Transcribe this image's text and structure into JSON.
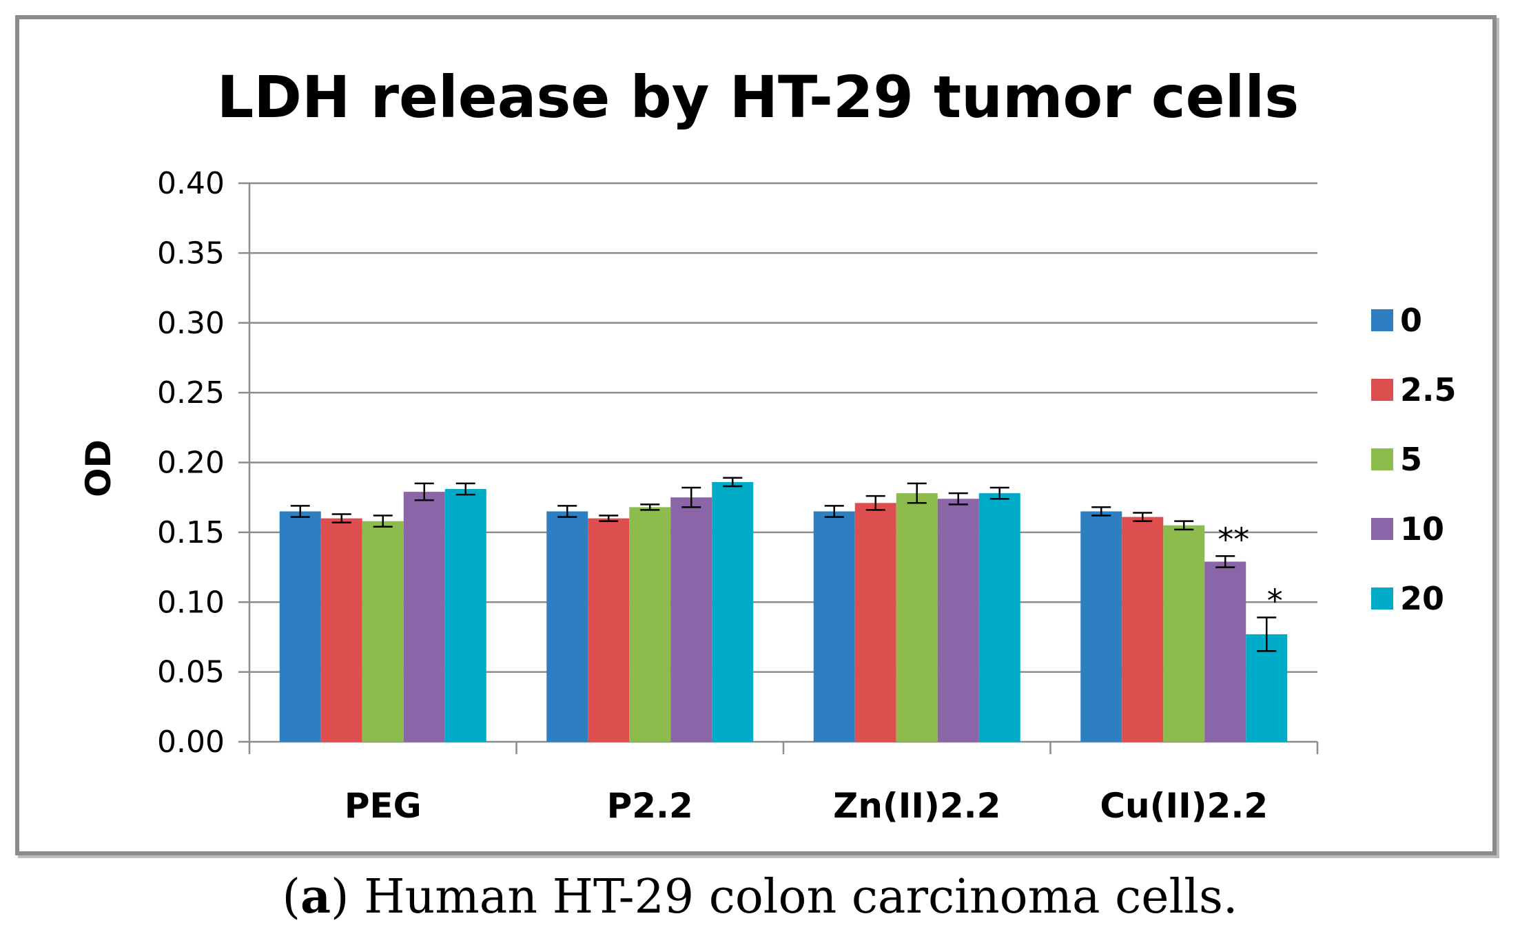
{
  "chart_data": {
    "type": "bar",
    "title": "LDH release by HT-29 tumor cells",
    "xlabel": "",
    "ylabel": "OD",
    "ylim": [
      0,
      0.4
    ],
    "yticks": [
      "0.00",
      "0.05",
      "0.10",
      "0.15",
      "0.20",
      "0.25",
      "0.30",
      "0.35",
      "0.40"
    ],
    "grid": true,
    "legend_position": "right",
    "categories": [
      "PEG",
      "P2.2",
      "Zn(II)2.2",
      "Cu(II)2.2"
    ],
    "series": [
      {
        "name": "0",
        "color": "#2e7fc2",
        "values": [
          0.165,
          0.165,
          0.165,
          0.165
        ],
        "errors": [
          0.004,
          0.004,
          0.004,
          0.003
        ]
      },
      {
        "name": "2.5",
        "color": "#dd4f4f",
        "values": [
          0.16,
          0.16,
          0.171,
          0.161
        ],
        "errors": [
          0.003,
          0.002,
          0.005,
          0.003
        ]
      },
      {
        "name": "5",
        "color": "#8dbb4d",
        "values": [
          0.158,
          0.168,
          0.178,
          0.155
        ],
        "errors": [
          0.004,
          0.002,
          0.007,
          0.003
        ]
      },
      {
        "name": "10",
        "color": "#8a66a8",
        "values": [
          0.179,
          0.175,
          0.174,
          0.129
        ],
        "errors": [
          0.006,
          0.007,
          0.004,
          0.004
        ]
      },
      {
        "name": "20",
        "color": "#00abc8",
        "values": [
          0.181,
          0.186,
          0.178,
          0.077
        ],
        "errors": [
          0.004,
          0.003,
          0.004,
          0.012
        ]
      }
    ],
    "annotations": [
      {
        "text": "**",
        "category": "Cu(II)2.2",
        "series": "10"
      },
      {
        "text": "*",
        "category": "Cu(II)2.2",
        "series": "20"
      }
    ]
  },
  "caption": {
    "letter": "a",
    "text": " Human HT-29 colon carcinoma cells."
  }
}
